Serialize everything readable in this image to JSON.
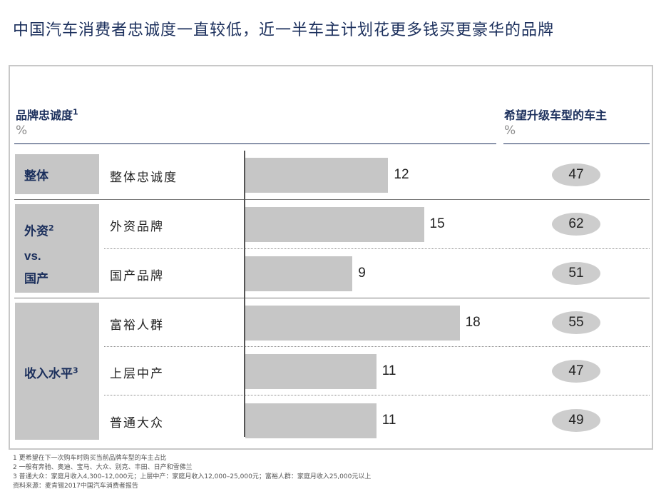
{
  "title": "中国汽车消费者忠诚度一直较低，近一半车主计划花更多钱买更豪华的品牌",
  "left_header": {
    "label": "品牌忠诚度",
    "sup": "1",
    "unit": "%"
  },
  "right_header": {
    "label": "希望升级车型的车主",
    "unit": "%"
  },
  "groups": [
    {
      "label": "整体",
      "sup": ""
    },
    {
      "label_line1": "外资",
      "sup": "2",
      "label_line2": "vs.",
      "label_line3": "国产"
    },
    {
      "label": "收入水平",
      "sup": "3"
    }
  ],
  "chart_data": {
    "type": "bar",
    "orientation": "horizontal",
    "categories": [
      "整体忠诚度",
      "外资品牌",
      "国产品牌",
      "富裕人群",
      "上层中产",
      "普通大众"
    ],
    "series": [
      {
        "values": [
          12,
          15,
          9,
          18,
          11,
          11
        ]
      },
      {
        "values": [
          47,
          62,
          51,
          55,
          47,
          49
        ]
      }
    ],
    "xlim": [
      0,
      20
    ],
    "grid": false
  },
  "footnotes": [
    "1 更希望在下一次购车时购买当前品牌车型的车主占比",
    "2 一般有奔驰、奥迪、宝马、大众、别克、丰田、日产和雪佛兰",
    "3 普通大众：家庭月收入4,300–12,000元；上层中产：家庭月收入12,000–25,000元；富裕人群：家庭月收入25,000元以上",
    "资料来源：麦肯锡2017中国汽车消费者报告"
  ],
  "colors": {
    "navy": "#1b2f5c",
    "bar": "#c6c6c6",
    "pill": "#cdcdcd"
  }
}
